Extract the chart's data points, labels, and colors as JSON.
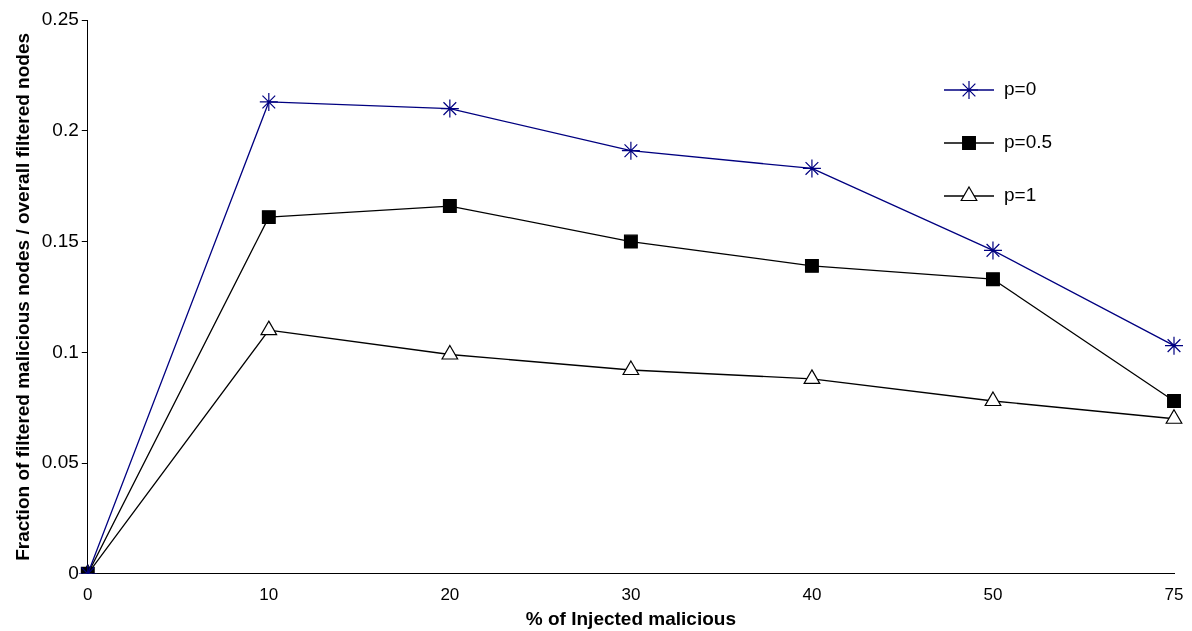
{
  "chart_data": {
    "type": "line",
    "xlabel": "% of Injected malicious",
    "ylabel": "Fraction of filtered malicious nodes / overall filtered nodes",
    "categories": [
      "0",
      "10",
      "20",
      "30",
      "40",
      "50",
      "75"
    ],
    "series": [
      {
        "name": "p=0",
        "color": "#000080",
        "marker": "cross",
        "values": [
          0,
          0.213,
          0.21,
          0.191,
          0.183,
          0.146,
          0.103
        ]
      },
      {
        "name": "p=0.5",
        "color": "#000000",
        "marker": "square",
        "values": [
          0,
          0.161,
          0.166,
          0.15,
          0.139,
          0.133,
          0.078
        ]
      },
      {
        "name": "p=1",
        "color": "#000000",
        "marker": "triangle",
        "values": [
          0,
          0.11,
          0.099,
          0.092,
          0.088,
          0.078,
          0.07
        ]
      }
    ],
    "ylim": [
      0,
      0.25
    ],
    "yticks": [
      0,
      0.05,
      0.1,
      0.15,
      0.2,
      0.25
    ],
    "grid": false,
    "legend": "top right",
    "line_style": "solid"
  }
}
